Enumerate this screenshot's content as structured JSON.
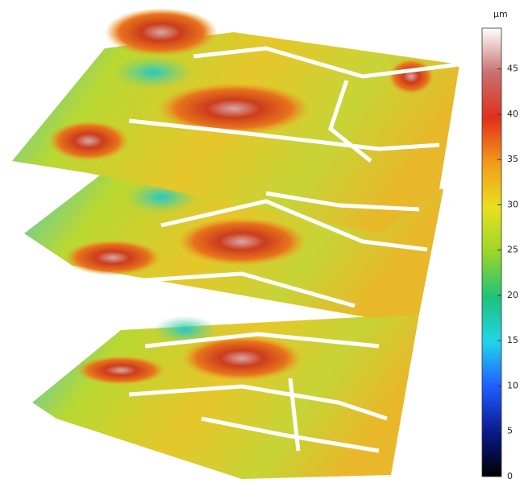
{
  "colorbar": {
    "unit": "µm",
    "zlim": [
      0,
      49.5
    ],
    "ticks": [
      0,
      5,
      10,
      15,
      20,
      25,
      30,
      35,
      40,
      45
    ],
    "colormap": [
      "#000000",
      "#0a1a8c",
      "#1f5cff",
      "#22d4e8",
      "#1ec27a",
      "#9ad62a",
      "#e8e020",
      "#f39a1a",
      "#e0301a",
      "#c87070",
      "#ffffff"
    ]
  }
}
